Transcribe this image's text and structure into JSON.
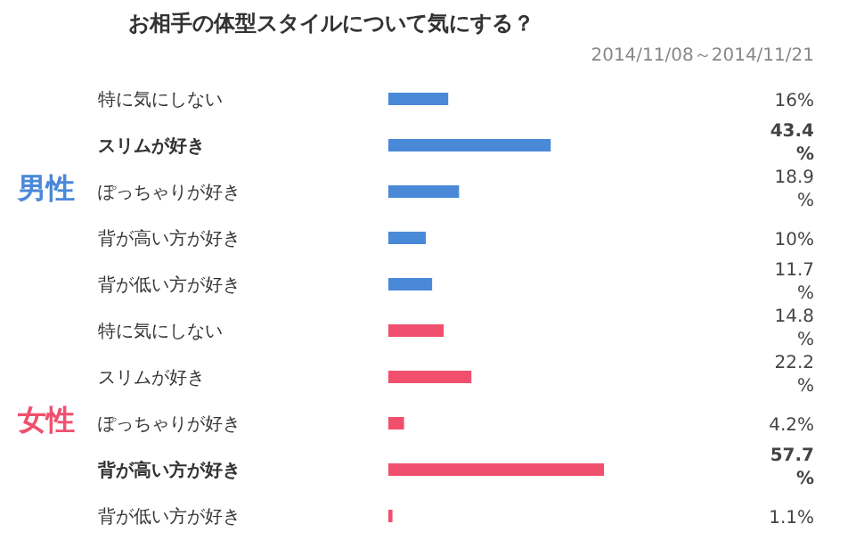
{
  "chart_data": {
    "type": "bar",
    "orientation": "horizontal",
    "title": "お相手の体型スタイルについて気にする？",
    "subtitle": "2014/11/08～2014/11/21",
    "annotations": [
      "男性",
      "女性"
    ],
    "categories": [
      "特に気にしない",
      "スリムが好き",
      "ぽっちゃりが好き",
      "背が高い方が好き",
      "背が低い方が好き",
      "特に気にしない",
      "スリムが好き",
      "ぽっちゃりが好き",
      "背が高い方が好き",
      "背が低い方が好き"
    ],
    "values": [
      16,
      43.4,
      18.9,
      10,
      11.7,
      14.8,
      22.2,
      4.2,
      57.7,
      1.1
    ],
    "value_labels": [
      "16%",
      "43.4%",
      "18.9%",
      "10%",
      "11.7%",
      "14.8%",
      "22.2%",
      "4.2%",
      "57.7%",
      "1.1%"
    ],
    "colors": [
      "#4a88d8",
      "#4a88d8",
      "#4a88d8",
      "#4a88d8",
      "#4a88d8",
      "#f0506e",
      "#f0506e",
      "#f0506e",
      "#f0506e",
      "#f0506e"
    ],
    "tick_labels": "y"
  }
}
